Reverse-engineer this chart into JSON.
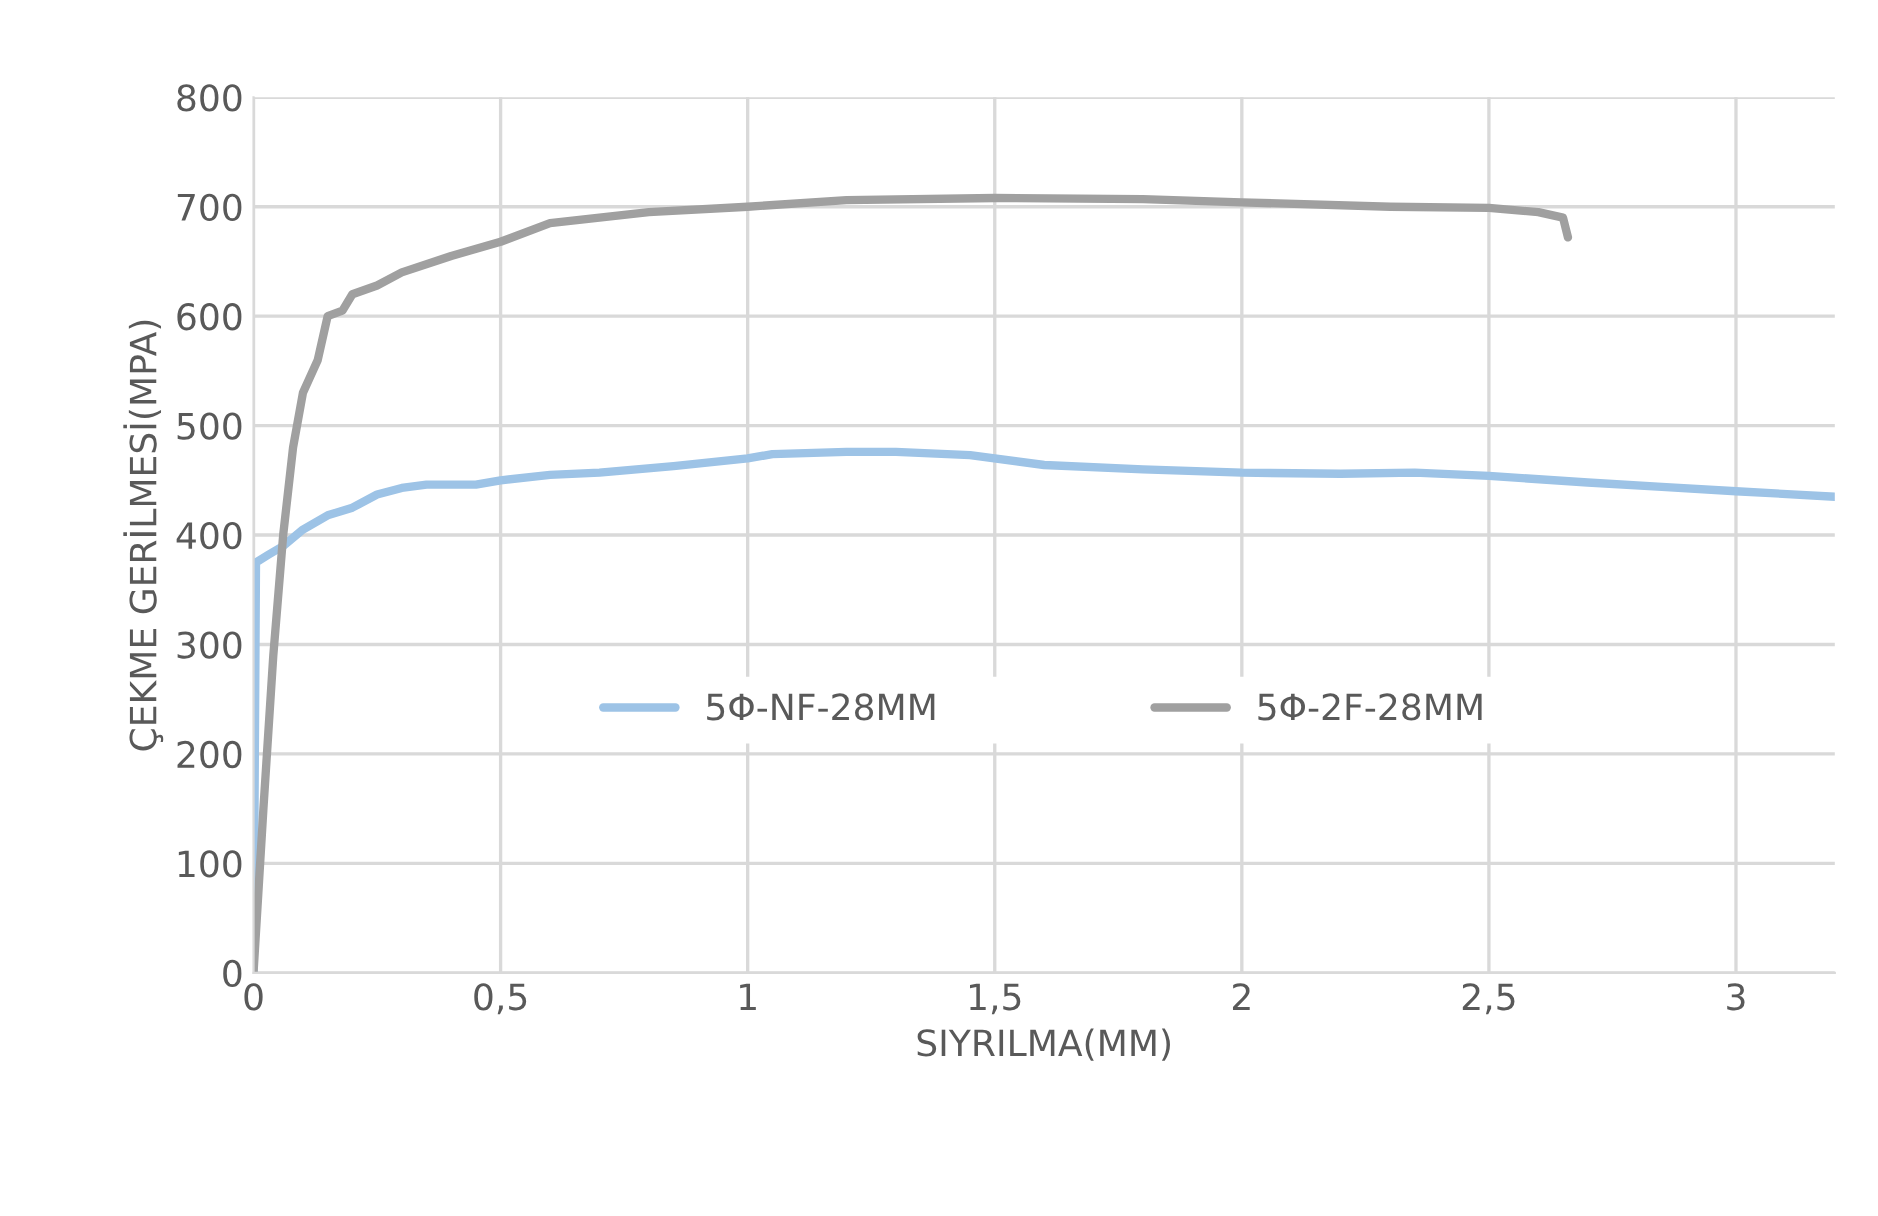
{
  "chart_data": {
    "type": "line",
    "xlabel": "SIYRILMA(MM)",
    "ylabel": "ÇEKME GERİLMESİ(MPA)",
    "xlim": [
      0,
      3.2
    ],
    "xticks": [
      {
        "value": 0,
        "label": "0"
      },
      {
        "value": 0.5,
        "label": "0,5"
      },
      {
        "value": 1,
        "label": "1"
      },
      {
        "value": 1.5,
        "label": "1,5"
      },
      {
        "value": 2,
        "label": "2"
      },
      {
        "value": 2.5,
        "label": "2,5"
      },
      {
        "value": 3,
        "label": "3"
      }
    ],
    "ylim": [
      0,
      800
    ],
    "yticks": [
      0,
      100,
      200,
      300,
      400,
      500,
      600,
      700,
      800
    ],
    "grid": true,
    "legend": "center",
    "series": [
      {
        "name": "5Φ-NF-28MM",
        "color": "#9dc3e6",
        "x": [
          0,
          0.005,
          0.03,
          0.06,
          0.1,
          0.15,
          0.2,
          0.25,
          0.3,
          0.35,
          0.45,
          0.5,
          0.6,
          0.7,
          0.85,
          1.0,
          1.05,
          1.2,
          1.3,
          1.45,
          1.6,
          1.8,
          2.0,
          2.2,
          2.35,
          2.5,
          2.7,
          2.85,
          3.0,
          3.2
        ],
        "values": [
          0,
          375,
          382,
          390,
          405,
          418,
          425,
          437,
          443,
          446,
          446,
          450,
          455,
          457,
          463,
          470,
          474,
          476,
          476,
          473,
          464,
          460,
          457,
          456,
          457,
          454,
          448,
          444,
          440,
          435
        ]
      },
      {
        "name": "5Φ-2F-28MM",
        "color": "#a0a0a0",
        "x": [
          0,
          0.02,
          0.04,
          0.06,
          0.08,
          0.1,
          0.13,
          0.15,
          0.18,
          0.2,
          0.25,
          0.3,
          0.4,
          0.5,
          0.6,
          0.8,
          1.0,
          1.2,
          1.5,
          1.8,
          2.0,
          2.3,
          2.5,
          2.6,
          2.65,
          2.66
        ],
        "values": [
          0,
          150,
          290,
          400,
          480,
          530,
          560,
          600,
          605,
          620,
          628,
          640,
          655,
          668,
          685,
          695,
          700,
          706,
          708,
          707,
          704,
          700,
          699,
          695,
          690,
          672
        ]
      }
    ]
  }
}
